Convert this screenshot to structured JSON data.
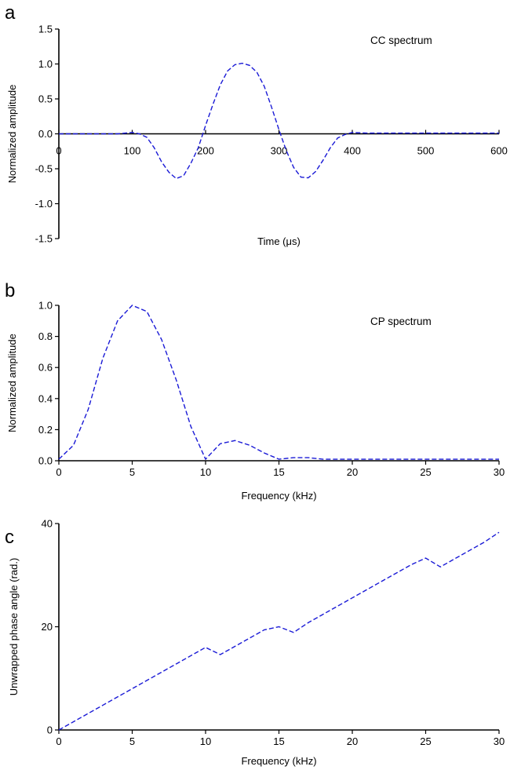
{
  "chart_data": [
    {
      "panel": "a",
      "type": "line",
      "title": "",
      "annotation": "CC spectrum",
      "xlabel": "Time (μs)",
      "ylabel": "Normalized amplitude",
      "xlim": [
        0,
        600
      ],
      "ylim": [
        -1.5,
        1.5
      ],
      "xticks": [
        0,
        100,
        200,
        300,
        400,
        500,
        600
      ],
      "yticks": [
        -1.5,
        -1.0,
        -0.5,
        0.0,
        0.5,
        1.0,
        1.5
      ],
      "xtick_labels": [
        "0",
        "100",
        "200",
        "300",
        "400",
        "500",
        "600"
      ],
      "ytick_labels": [
        "-1.5",
        "-1.0",
        "-0.5",
        "0.0",
        "0.5",
        "1.0",
        "1.5"
      ],
      "grid": false,
      "series": [
        {
          "color": "#1a1ad6",
          "x": [
            0,
            20,
            40,
            60,
            80,
            100,
            110,
            120,
            130,
            140,
            150,
            160,
            170,
            180,
            190,
            200,
            210,
            220,
            230,
            240,
            250,
            260,
            270,
            280,
            290,
            300,
            310,
            320,
            330,
            340,
            350,
            360,
            370,
            380,
            390,
            400,
            420,
            450,
            500,
            550,
            600
          ],
          "y": [
            0.0,
            0.0,
            0.0,
            0.0,
            0.0,
            0.02,
            0.0,
            -0.05,
            -0.2,
            -0.4,
            -0.55,
            -0.64,
            -0.6,
            -0.42,
            -0.2,
            0.12,
            0.42,
            0.7,
            0.9,
            0.99,
            1.01,
            0.98,
            0.88,
            0.68,
            0.38,
            0.06,
            -0.24,
            -0.48,
            -0.62,
            -0.63,
            -0.54,
            -0.38,
            -0.2,
            -0.06,
            -0.01,
            0.02,
            0.01,
            0.01,
            0.01,
            0.01,
            0.01
          ]
        }
      ]
    },
    {
      "panel": "b",
      "type": "line",
      "title": "",
      "annotation": "CP spectrum",
      "xlabel": "Frequency (kHz)",
      "ylabel": "Normalized amplitude",
      "xlim": [
        0,
        30
      ],
      "ylim": [
        0,
        1.0
      ],
      "xticks": [
        0,
        5,
        10,
        15,
        20,
        25,
        30
      ],
      "yticks": [
        0.0,
        0.2,
        0.4,
        0.6,
        0.8,
        1.0
      ],
      "xtick_labels": [
        "0",
        "5",
        "10",
        "15",
        "20",
        "25",
        "30"
      ],
      "ytick_labels": [
        "0.0",
        "0.2",
        "0.4",
        "0.6",
        "0.8",
        "1.0"
      ],
      "grid": false,
      "series": [
        {
          "color": "#1a1ad6",
          "x": [
            0,
            1,
            2,
            3,
            4,
            5,
            6,
            7,
            8,
            9,
            10,
            11,
            12,
            13,
            14,
            15,
            16,
            17,
            18,
            19,
            20,
            21,
            22,
            23,
            24,
            25,
            26,
            27,
            28,
            29,
            30
          ],
          "y": [
            0.01,
            0.1,
            0.33,
            0.66,
            0.9,
            1.0,
            0.96,
            0.78,
            0.52,
            0.22,
            0.01,
            0.11,
            0.13,
            0.1,
            0.05,
            0.01,
            0.02,
            0.02,
            0.01,
            0.01,
            0.01,
            0.01,
            0.01,
            0.01,
            0.01,
            0.01,
            0.01,
            0.01,
            0.01,
            0.01,
            0.01
          ]
        }
      ]
    },
    {
      "panel": "c",
      "type": "line",
      "title": "",
      "annotation": "",
      "xlabel": "Frequency (kHz)",
      "ylabel": "Unwrapped phase angle (rad.)",
      "xlim": [
        0,
        30
      ],
      "ylim": [
        0,
        40
      ],
      "xticks": [
        0,
        5,
        10,
        15,
        20,
        25,
        30
      ],
      "yticks": [
        0,
        20,
        40
      ],
      "xtick_labels": [
        "0",
        "5",
        "10",
        "15",
        "20",
        "25",
        "30"
      ],
      "ytick_labels": [
        "0",
        "20",
        "40"
      ],
      "grid": false,
      "series": [
        {
          "color": "#1a1ad6",
          "x": [
            0,
            1,
            2,
            3,
            4,
            5,
            6,
            7,
            8,
            9,
            10,
            11,
            12,
            13,
            14,
            15,
            16,
            17,
            18,
            19,
            20,
            21,
            22,
            23,
            24,
            25,
            26,
            27,
            28,
            29,
            30
          ],
          "y": [
            0,
            1.6,
            3.2,
            4.8,
            6.4,
            8.0,
            9.6,
            11.2,
            12.8,
            14.4,
            16.0,
            14.6,
            16.2,
            17.8,
            19.4,
            20.0,
            18.9,
            20.8,
            22.4,
            24.0,
            25.6,
            27.2,
            28.8,
            30.4,
            32.0,
            33.3,
            31.6,
            33.2,
            34.8,
            36.4,
            38.3
          ]
        }
      ]
    }
  ]
}
